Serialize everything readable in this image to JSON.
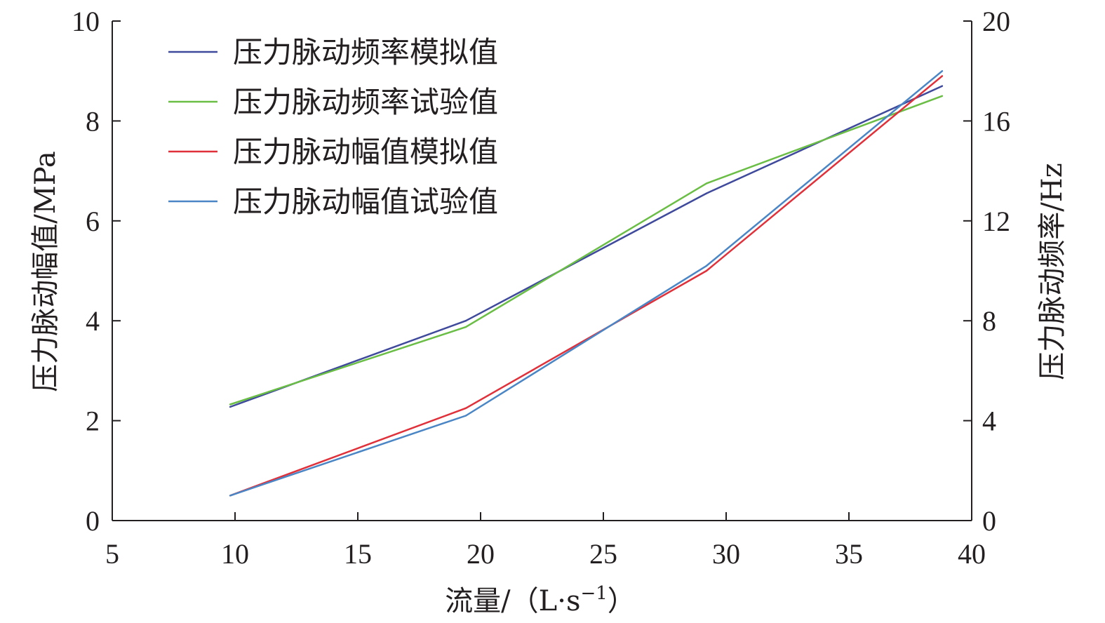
{
  "chart_data": {
    "type": "line",
    "title": "",
    "xlabel": "流量/（L·s",
    "xlabel_sup": "−1",
    "xlabel_close": "）",
    "ylabel_left": "压力脉动幅值/MPa",
    "ylabel_right": "压力脉动频率/Hz",
    "xlim": [
      5,
      40
    ],
    "ylim_left": [
      0,
      10
    ],
    "ylim_right": [
      0,
      20
    ],
    "xticks": [
      "5",
      "10",
      "15",
      "20",
      "25",
      "30",
      "35",
      "40"
    ],
    "yticks_left": [
      "0",
      "2",
      "4",
      "6",
      "8",
      "10"
    ],
    "yticks_right": [
      "0",
      "4",
      "8",
      "12",
      "16",
      "20"
    ],
    "grid": false,
    "legend_position": "top-left",
    "x": [
      9.8,
      19.4,
      29.2,
      38.8
    ],
    "series": [
      {
        "name": "压力脉动频率模拟值",
        "axis": "right",
        "color": "#3f4a9c",
        "values": [
          4.55,
          8.0,
          13.1,
          17.4
        ]
      },
      {
        "name": "压力脉动频率试验值",
        "axis": "right",
        "color": "#6abd45",
        "values": [
          4.65,
          7.75,
          13.5,
          17.0
        ]
      },
      {
        "name": "压力脉动幅值模拟值",
        "axis": "left",
        "color": "#e0303a",
        "values": [
          0.5,
          2.25,
          5.0,
          8.9
        ]
      },
      {
        "name": "压力脉动幅值试验值",
        "axis": "left",
        "color": "#4a86c5",
        "values": [
          0.5,
          2.1,
          5.1,
          9.0
        ]
      }
    ]
  }
}
